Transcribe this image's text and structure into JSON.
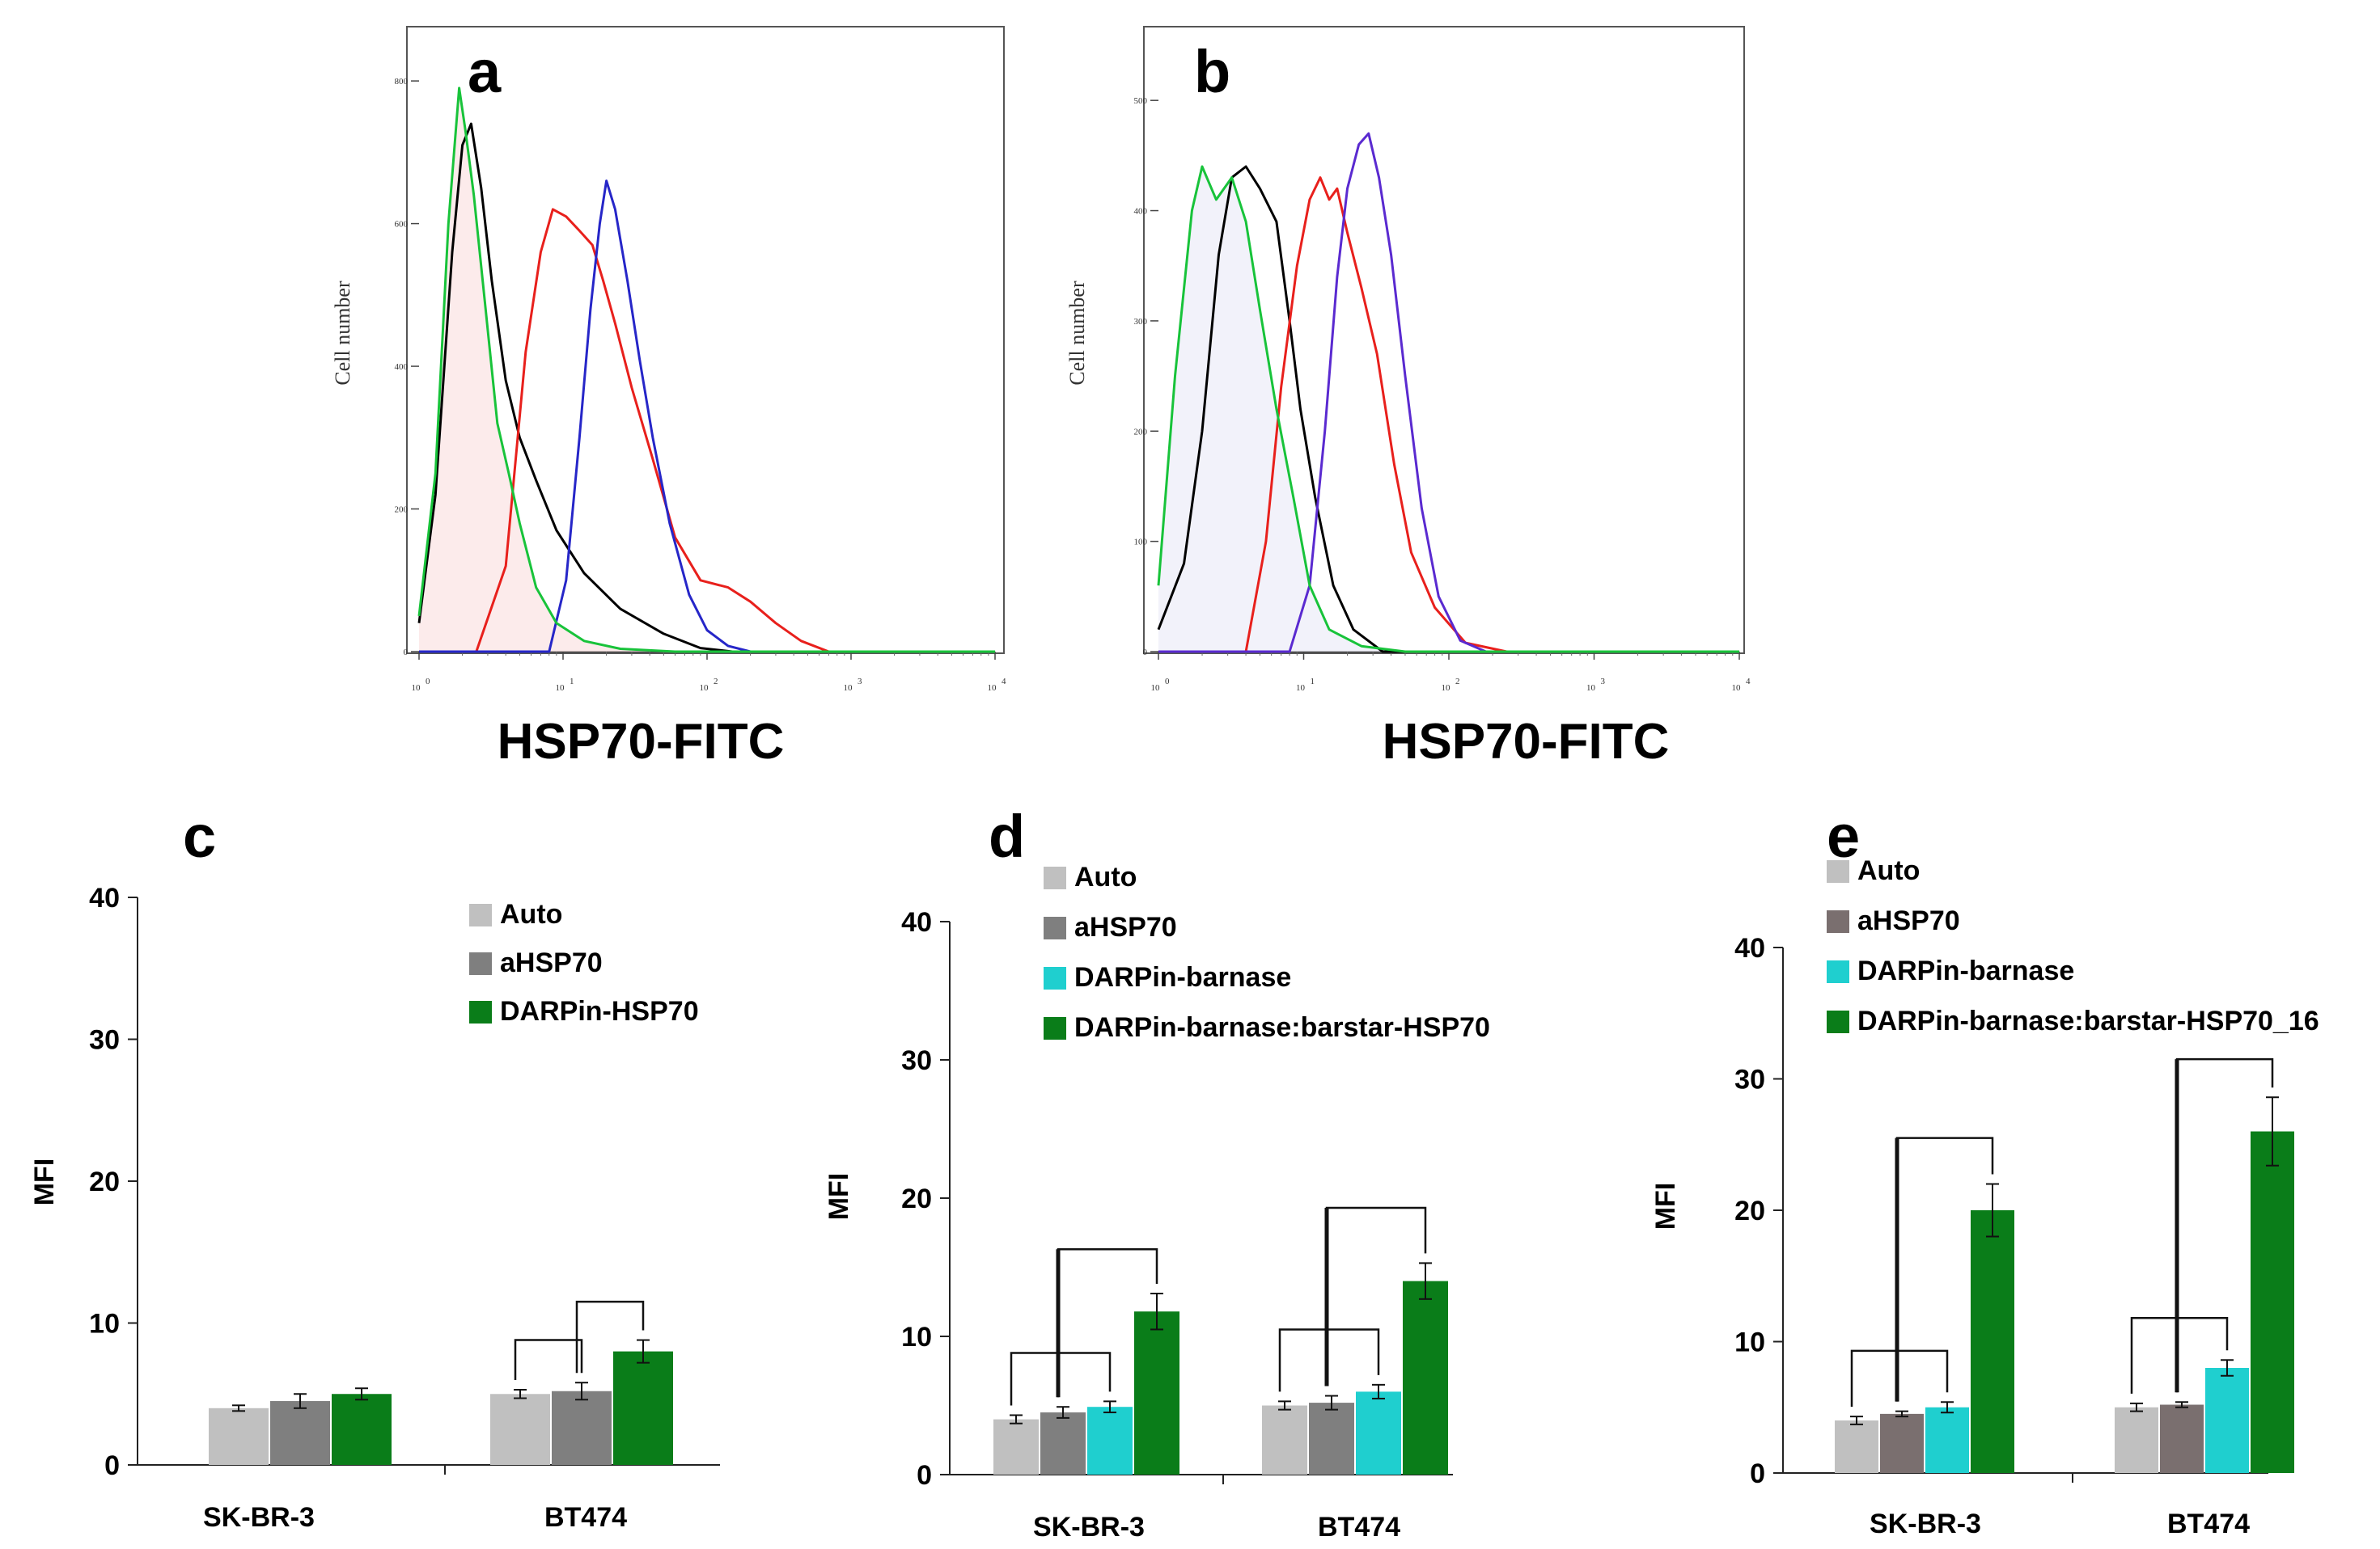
{
  "chart_data": [
    {
      "panel": "a",
      "type": "line",
      "title": "",
      "xlabel": "HSP70-FITC",
      "ylabel": "Cell number",
      "xscale": "log",
      "xlim": [
        1,
        10000
      ],
      "ylim": [
        0,
        850
      ],
      "x_ticks": [
        "10",
        "10",
        "10",
        "10",
        "10"
      ],
      "x_tick_exponents": [
        "0",
        "1",
        "2",
        "3",
        "4"
      ],
      "y_ticks": [
        "0",
        "200",
        "400",
        "600",
        "800"
      ],
      "series": [
        {
          "name": "green",
          "color": "#18c33a",
          "fill": true,
          "points": [
            [
              1.0,
              50
            ],
            [
              1.3,
              250
            ],
            [
              1.6,
              600
            ],
            [
              1.9,
              790
            ],
            [
              2.1,
              730
            ],
            [
              2.4,
              640
            ],
            [
              2.9,
              480
            ],
            [
              3.5,
              320
            ],
            [
              4.2,
              250
            ],
            [
              5.0,
              180
            ],
            [
              6.5,
              90
            ],
            [
              9,
              40
            ],
            [
              14,
              15
            ],
            [
              25,
              4
            ],
            [
              60,
              0
            ],
            [
              10000,
              0
            ]
          ]
        },
        {
          "name": "black",
          "color": "#000000",
          "fill": false,
          "points": [
            [
              1.0,
              40
            ],
            [
              1.3,
              220
            ],
            [
              1.7,
              560
            ],
            [
              2.0,
              710
            ],
            [
              2.3,
              740
            ],
            [
              2.7,
              650
            ],
            [
              3.2,
              520
            ],
            [
              4.0,
              380
            ],
            [
              5.0,
              300
            ],
            [
              6.5,
              240
            ],
            [
              9,
              170
            ],
            [
              14,
              110
            ],
            [
              25,
              60
            ],
            [
              50,
              25
            ],
            [
              90,
              5
            ],
            [
              150,
              0
            ],
            [
              10000,
              0
            ]
          ]
        },
        {
          "name": "red",
          "color": "#e8201c",
          "fill": false,
          "points": [
            [
              1.0,
              0
            ],
            [
              2.5,
              0
            ],
            [
              4.0,
              120
            ],
            [
              5.5,
              420
            ],
            [
              7.0,
              560
            ],
            [
              8.5,
              620
            ],
            [
              10.5,
              610
            ],
            [
              13,
              590
            ],
            [
              16,
              570
            ],
            [
              19,
              520
            ],
            [
              23,
              460
            ],
            [
              30,
              370
            ],
            [
              42,
              270
            ],
            [
              60,
              160
            ],
            [
              90,
              100
            ],
            [
              140,
              90
            ],
            [
              200,
              70
            ],
            [
              300,
              40
            ],
            [
              450,
              15
            ],
            [
              700,
              0
            ],
            [
              10000,
              0
            ]
          ]
        },
        {
          "name": "blue",
          "color": "#2626c8",
          "fill": false,
          "points": [
            [
              1.0,
              0
            ],
            [
              8,
              0
            ],
            [
              10.5,
              100
            ],
            [
              13,
              300
            ],
            [
              15.5,
              480
            ],
            [
              18,
              600
            ],
            [
              20,
              660
            ],
            [
              23,
              620
            ],
            [
              28,
              520
            ],
            [
              34,
              410
            ],
            [
              42,
              300
            ],
            [
              55,
              180
            ],
            [
              75,
              80
            ],
            [
              100,
              30
            ],
            [
              140,
              8
            ],
            [
              200,
              0
            ],
            [
              10000,
              0
            ]
          ]
        }
      ]
    },
    {
      "panel": "b",
      "type": "line",
      "title": "",
      "xlabel": "HSP70-FITC",
      "ylabel": "Cell number",
      "xscale": "log",
      "xlim": [
        1,
        10000
      ],
      "ylim": [
        0,
        550
      ],
      "x_ticks": [
        "10",
        "10",
        "10",
        "10",
        "10"
      ],
      "x_tick_exponents": [
        "0",
        "1",
        "2",
        "3",
        "4"
      ],
      "y_ticks": [
        "0",
        "100",
        "200",
        "300",
        "400",
        "500"
      ],
      "series": [
        {
          "name": "green",
          "color": "#18c33a",
          "fill": true,
          "points": [
            [
              1.0,
              60
            ],
            [
              1.3,
              250
            ],
            [
              1.7,
              400
            ],
            [
              2.0,
              440
            ],
            [
              2.5,
              410
            ],
            [
              3.2,
              430
            ],
            [
              4.0,
              390
            ],
            [
              5.0,
              310
            ],
            [
              6.5,
              220
            ],
            [
              8.5,
              140
            ],
            [
              11,
              60
            ],
            [
              15,
              20
            ],
            [
              25,
              5
            ],
            [
              50,
              0
            ],
            [
              10000,
              0
            ]
          ]
        },
        {
          "name": "black",
          "color": "#000000",
          "fill": false,
          "points": [
            [
              1.0,
              20
            ],
            [
              1.5,
              80
            ],
            [
              2.0,
              200
            ],
            [
              2.6,
              360
            ],
            [
              3.2,
              430
            ],
            [
              4.0,
              440
            ],
            [
              5.0,
              420
            ],
            [
              6.5,
              390
            ],
            [
              8.0,
              300
            ],
            [
              9.5,
              220
            ],
            [
              12,
              140
            ],
            [
              16,
              60
            ],
            [
              22,
              20
            ],
            [
              35,
              0
            ],
            [
              10000,
              0
            ]
          ]
        },
        {
          "name": "red",
          "color": "#e8201c",
          "fill": false,
          "points": [
            [
              1.0,
              0
            ],
            [
              4.0,
              0
            ],
            [
              5.5,
              100
            ],
            [
              7.0,
              240
            ],
            [
              9.0,
              350
            ],
            [
              11,
              410
            ],
            [
              13,
              430
            ],
            [
              15,
              410
            ],
            [
              17,
              420
            ],
            [
              20,
              380
            ],
            [
              25,
              330
            ],
            [
              32,
              270
            ],
            [
              42,
              170
            ],
            [
              55,
              90
            ],
            [
              80,
              40
            ],
            [
              130,
              8
            ],
            [
              250,
              0
            ],
            [
              10000,
              0
            ]
          ]
        },
        {
          "name": "purple",
          "color": "#5a2ad0",
          "fill": false,
          "points": [
            [
              1.0,
              0
            ],
            [
              8.0,
              0
            ],
            [
              11,
              60
            ],
            [
              14,
              200
            ],
            [
              17,
              340
            ],
            [
              20,
              420
            ],
            [
              24,
              460
            ],
            [
              28,
              470
            ],
            [
              33,
              430
            ],
            [
              40,
              360
            ],
            [
              50,
              250
            ],
            [
              65,
              130
            ],
            [
              85,
              50
            ],
            [
              120,
              10
            ],
            [
              180,
              0
            ],
            [
              10000,
              0
            ]
          ]
        }
      ]
    },
    {
      "panel": "c",
      "type": "bar",
      "title": "",
      "xlabel": "",
      "ylabel": "MFI",
      "ylim": [
        0,
        40
      ],
      "y_ticks": [
        "0",
        "10",
        "20",
        "30",
        "40"
      ],
      "categories": [
        "SK-BR-3",
        "BT474"
      ],
      "series": [
        {
          "name": "Auto",
          "color": "#c0c0c0",
          "values": [
            4.0,
            5.0
          ],
          "errors": [
            0.2,
            0.3
          ]
        },
        {
          "name": "aHSP70",
          "color": "#7f7f7f",
          "values": [
            4.5,
            5.2
          ],
          "errors": [
            0.5,
            0.6
          ]
        },
        {
          "name": "DARPin-HSP70",
          "color": "#0a7d19",
          "values": [
            5.0,
            8.0
          ],
          "errors": [
            0.4,
            0.8
          ]
        }
      ],
      "brackets": [
        {
          "category": 1,
          "from": 0,
          "to": 1,
          "level": 8.8
        },
        {
          "category": 1,
          "from": 1,
          "to": 2,
          "level": 11.5
        }
      ]
    },
    {
      "panel": "d",
      "type": "bar",
      "title": "",
      "xlabel": "",
      "ylabel": "MFI",
      "ylim": [
        0,
        40
      ],
      "y_ticks": [
        "0",
        "10",
        "20",
        "30",
        "40"
      ],
      "categories": [
        "SK-BR-3",
        "BT474"
      ],
      "series": [
        {
          "name": "Auto",
          "color": "#c0c0c0",
          "values": [
            4.0,
            5.0
          ],
          "errors": [
            0.3,
            0.3
          ]
        },
        {
          "name": "aHSP70",
          "color": "#7f7f7f",
          "values": [
            4.5,
            5.2
          ],
          "errors": [
            0.4,
            0.5
          ]
        },
        {
          "name": "DARPin-barnase",
          "color": "#1fcfcf",
          "values": [
            4.9,
            6.0
          ],
          "errors": [
            0.4,
            0.5
          ]
        },
        {
          "name": "DARPin-barnase:barstar-HSP70",
          "color": "#0a7d19",
          "values": [
            11.8,
            14.0
          ],
          "errors": [
            1.3,
            1.3
          ]
        }
      ],
      "brackets": [
        {
          "category": 0,
          "from": 0,
          "to": 2,
          "level": 8.8
        },
        {
          "category": 0,
          "from": 1,
          "to": 3,
          "level": 16.3
        },
        {
          "category": 1,
          "from": 0,
          "to": 2,
          "level": 10.5
        },
        {
          "category": 1,
          "from": 1,
          "to": 3,
          "level": 19.3
        }
      ]
    },
    {
      "panel": "e",
      "type": "bar",
      "title": "",
      "xlabel": "",
      "ylabel": "MFI",
      "ylim": [
        0,
        40
      ],
      "y_ticks": [
        "0",
        "10",
        "20",
        "30",
        "40"
      ],
      "categories": [
        "SK-BR-3",
        "BT474"
      ],
      "series": [
        {
          "name": "Auto",
          "color": "#c0c0c0",
          "values": [
            4.0,
            5.0
          ],
          "errors": [
            0.3,
            0.3
          ]
        },
        {
          "name": "aHSP70",
          "color": "#7a6f6f",
          "values": [
            4.5,
            5.2
          ],
          "errors": [
            0.2,
            0.2
          ]
        },
        {
          "name": "DARPin-barnase",
          "color": "#1fcfcf",
          "values": [
            5.0,
            8.0
          ],
          "errors": [
            0.4,
            0.6
          ]
        },
        {
          "name": "DARPin-barnase:barstar-HSP70_16",
          "color": "#0a7d19",
          "values": [
            20.0,
            26.0
          ],
          "errors": [
            2.0,
            2.6
          ]
        }
      ],
      "brackets": [
        {
          "category": 0,
          "from": 0,
          "to": 2,
          "level": 9.3
        },
        {
          "category": 0,
          "from": 1,
          "to": 3,
          "level": 25.5
        },
        {
          "category": 1,
          "from": 0,
          "to": 2,
          "level": 11.8
        },
        {
          "category": 1,
          "from": 1,
          "to": 3,
          "level": 31.5
        }
      ]
    }
  ]
}
